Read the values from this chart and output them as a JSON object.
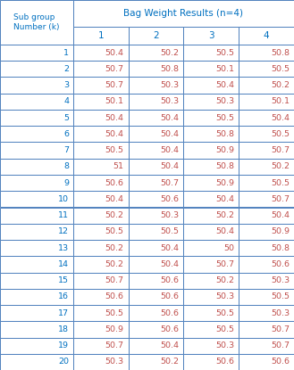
{
  "title": "Bag Weight Results (n=4)",
  "col_header_label": "Sub group\nNumber (k)",
  "col_headers": [
    "1",
    "2",
    "3",
    "4"
  ],
  "rows": [
    [
      1,
      "50.4",
      "50.2",
      "50.5",
      "50.8"
    ],
    [
      2,
      "50.7",
      "50.8",
      "50.1",
      "50.5"
    ],
    [
      3,
      "50.7",
      "50.3",
      "50.4",
      "50.2"
    ],
    [
      4,
      "50.1",
      "50.3",
      "50.3",
      "50.1"
    ],
    [
      5,
      "50.4",
      "50.4",
      "50.5",
      "50.4"
    ],
    [
      6,
      "50.4",
      "50.4",
      "50.8",
      "50.5"
    ],
    [
      7,
      "50.5",
      "50.4",
      "50.9",
      "50.7"
    ],
    [
      8,
      "51",
      "50.4",
      "50.8",
      "50.2"
    ],
    [
      9,
      "50.6",
      "50.7",
      "50.9",
      "50.5"
    ],
    [
      10,
      "50.4",
      "50.6",
      "50.4",
      "50.7"
    ],
    [
      11,
      "50.2",
      "50.3",
      "50.2",
      "50.4"
    ],
    [
      12,
      "50.5",
      "50.5",
      "50.4",
      "50.9"
    ],
    [
      13,
      "50.2",
      "50.4",
      "50",
      "50.8"
    ],
    [
      14,
      "50.2",
      "50.4",
      "50.7",
      "50.6"
    ],
    [
      15,
      "50.7",
      "50.6",
      "50.2",
      "50.3"
    ],
    [
      16,
      "50.6",
      "50.6",
      "50.3",
      "50.5"
    ],
    [
      17,
      "50.5",
      "50.6",
      "50.5",
      "50.3"
    ],
    [
      18,
      "50.9",
      "50.6",
      "50.5",
      "50.7"
    ],
    [
      19,
      "50.7",
      "50.4",
      "50.3",
      "50.7"
    ],
    [
      20,
      "50.3",
      "50.2",
      "50.6",
      "50.6"
    ]
  ],
  "header_text_color": "#0070c0",
  "row_number_color": "#0070c0",
  "data_color": "#c0504d",
  "border_color": "#4f81bd",
  "title_color": "#0070c0",
  "subgroup_label_color": "#0070c0",
  "fig_width": 3.29,
  "fig_height": 4.15,
  "dpi": 100
}
